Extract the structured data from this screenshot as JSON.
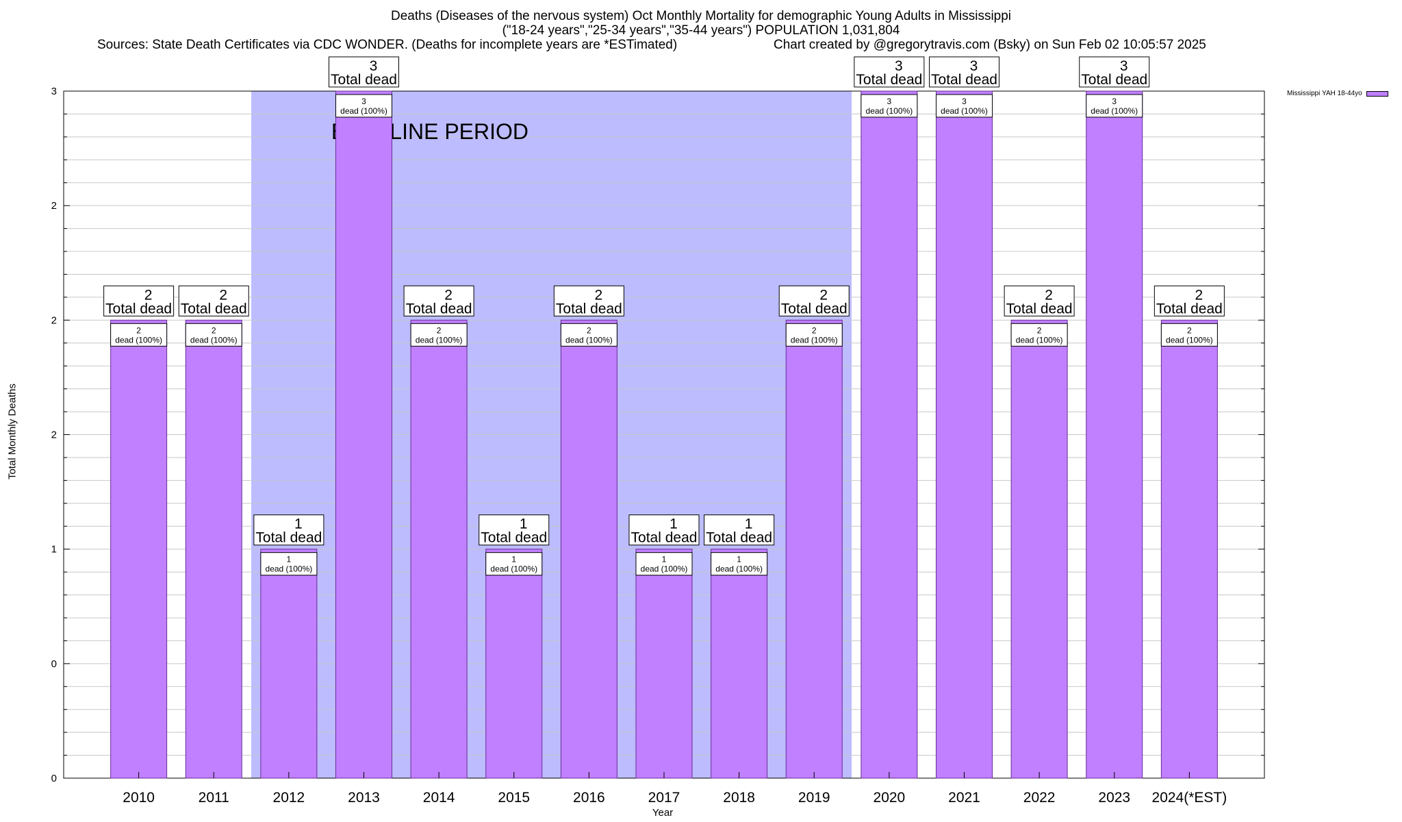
{
  "header": {
    "title_line1": "Deaths (Diseases of the nervous system) Oct Monthly Mortality for demographic Young Adults in Mississippi",
    "title_line2": "(\"18-24 years\",\"25-34 years\",\"35-44 years\") POPULATION 1,031,804",
    "sources": "Sources: State Death Certificates via CDC WONDER. (Deaths for incomplete years are *ESTimated)",
    "credit": "Chart created by @gregorytravis.com (Bsky) on Sun Feb 02 10:05:57 2025"
  },
  "colors": {
    "bar_fill": "#c080ff",
    "baseline_band": "#bcbcff",
    "grid": "#c8c8c8",
    "axis": "#000000"
  },
  "chart_data": {
    "type": "bar",
    "xlabel": "Year",
    "ylabel": "Total Monthly Deaths",
    "ylim": [
      0,
      3
    ],
    "ytick_labels": [
      "0",
      "0",
      "1",
      "2",
      "2",
      "2",
      "3"
    ],
    "grid": true,
    "legend_position": "top-right",
    "categories": [
      "2010",
      "2011",
      "2012",
      "2013",
      "2014",
      "2015",
      "2016",
      "2017",
      "2018",
      "2019",
      "2020",
      "2021",
      "2022",
      "2023",
      "2024(*EST)"
    ],
    "series": [
      {
        "name": "Mississippi YAH 18-44yo",
        "values": [
          2,
          2,
          1,
          3,
          2,
          1,
          2,
          1,
          1,
          2,
          3,
          3,
          2,
          3,
          2
        ]
      }
    ],
    "bar_inner_labels": [
      "dead (100%)",
      "dead (100%)",
      "dead (100%)",
      "dead (100%)",
      "dead (100%)",
      "dead (100%)",
      "dead (100%)",
      "dead (100%)",
      "dead (100%)",
      "dead (100%)",
      "dead (100%)",
      "dead (100%)",
      "dead (100%)",
      "dead (100%)",
      "dead (100%)"
    ],
    "total_label_text": "Total dead",
    "baseline_period": {
      "label": "BASELINE PERIOD",
      "start": "2012",
      "end": "2019"
    }
  }
}
